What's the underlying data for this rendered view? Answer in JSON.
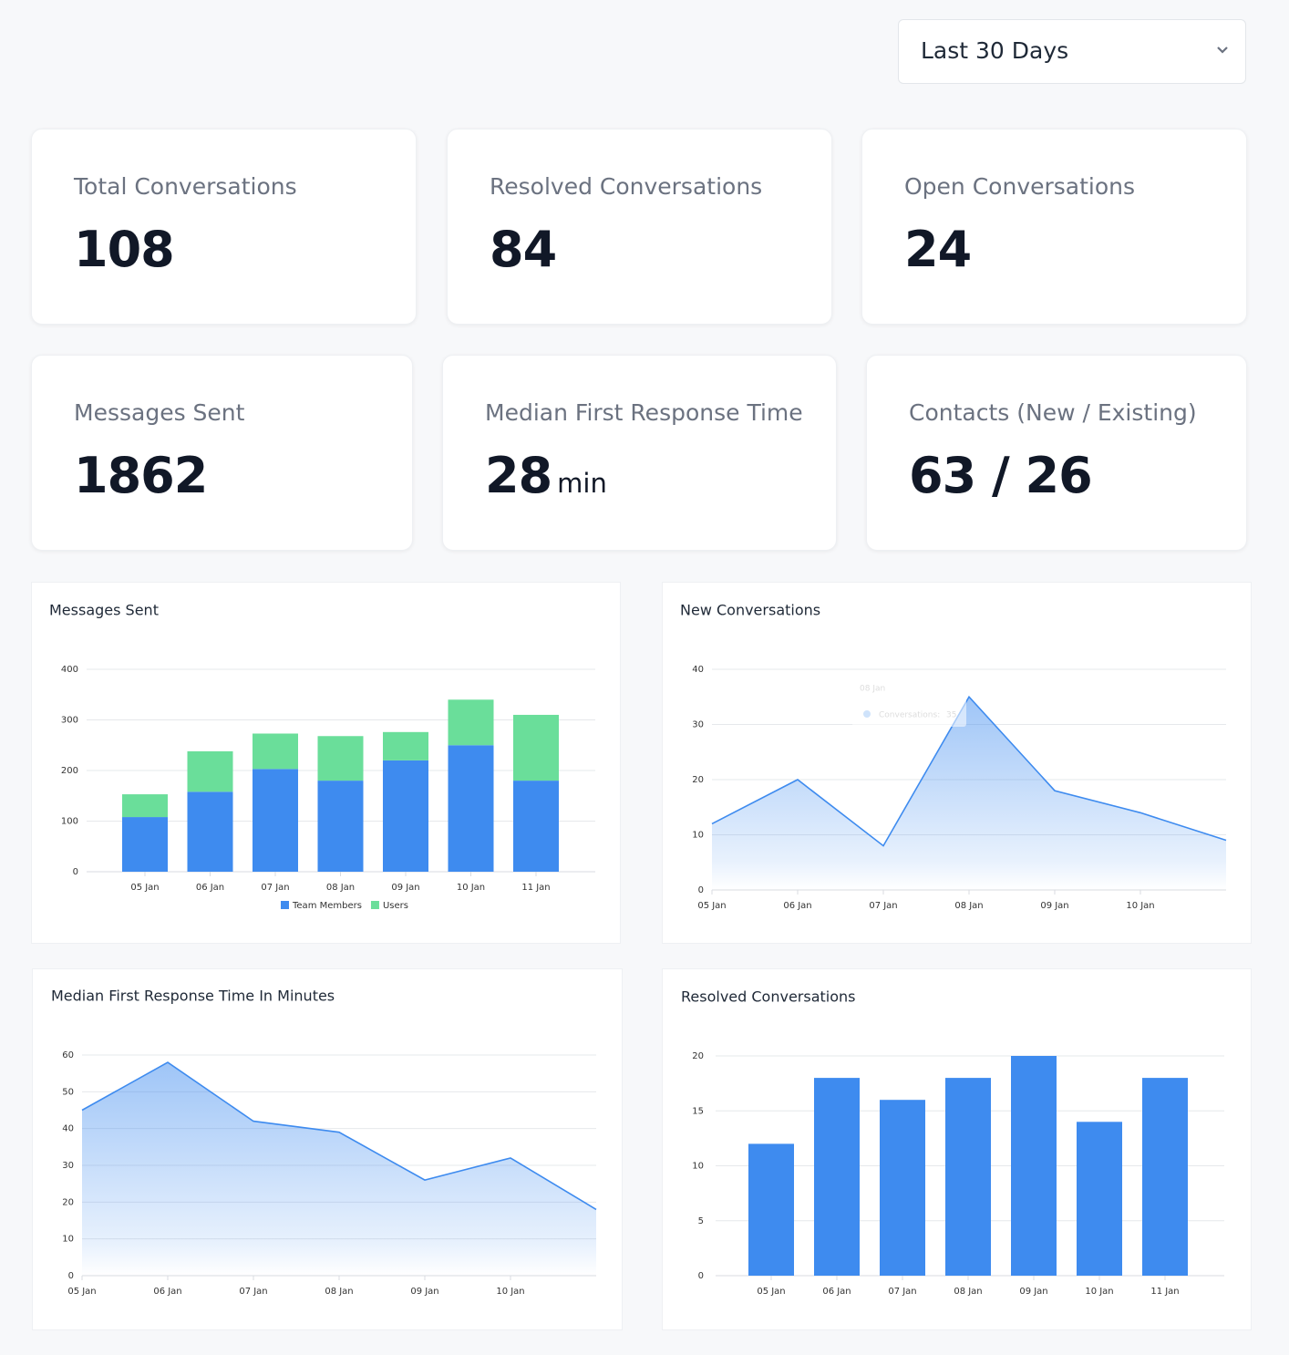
{
  "filter": {
    "label": "Last 30 Days"
  },
  "stats": [
    {
      "title": "Total Conversations",
      "value": 108
    },
    {
      "title": "Resolved Conversations",
      "value": 84
    },
    {
      "title": "Open Conversations",
      "value": 24
    },
    {
      "title": "Messages Sent",
      "value": 1862
    },
    {
      "title": "Median First Response Time",
      "value": 28,
      "unit": "min"
    },
    {
      "title": "Contacts (New / Existing)",
      "values": [
        63,
        26
      ],
      "separator": "/"
    }
  ],
  "chart_data": [
    {
      "type": "bar",
      "stacked": true,
      "title": "Messages Sent",
      "categories": [
        "05 Jan",
        "06 Jan",
        "07 Jan",
        "08 Jan",
        "09 Jan",
        "10 Jan",
        "11 Jan"
      ],
      "series": [
        {
          "name": "Team Members",
          "color": "#3e8bef",
          "values": [
            108,
            158,
            203,
            180,
            220,
            250,
            180
          ]
        },
        {
          "name": "Users",
          "color": "#6ade9a",
          "values": [
            45,
            80,
            70,
            88,
            56,
            90,
            130
          ]
        }
      ],
      "ylim": [
        0,
        400
      ],
      "yticks": [
        0,
        100,
        200,
        300,
        400
      ],
      "grid": true,
      "legend": "bottom"
    },
    {
      "type": "area",
      "title": "New Conversations",
      "categories": [
        "05 Jan",
        "06 Jan",
        "07 Jan",
        "08 Jan",
        "09 Jan",
        "10 Jan",
        null
      ],
      "values": [
        12,
        20,
        8,
        35,
        18,
        14,
        9
      ],
      "color": "#3e8bef",
      "ylim": [
        0,
        40
      ],
      "yticks": [
        0,
        10,
        20,
        30,
        40
      ],
      "grid": true,
      "tooltip": {
        "title": "08 Jan",
        "label": "Conversations:",
        "value": 35
      }
    },
    {
      "type": "area",
      "title": "Median First Response Time In Minutes",
      "categories": [
        "05 Jan",
        "06 Jan",
        "07 Jan",
        "08 Jan",
        "09 Jan",
        "10 Jan",
        null
      ],
      "values": [
        45,
        58,
        42,
        39,
        26,
        32,
        18
      ],
      "color": "#3e8bef",
      "ylim": [
        0,
        60
      ],
      "yticks": [
        0,
        10,
        20,
        30,
        40,
        50,
        60
      ],
      "grid": true
    },
    {
      "type": "bar",
      "title": "Resolved Conversations",
      "categories": [
        "05 Jan",
        "06 Jan",
        "07 Jan",
        "08 Jan",
        "09 Jan",
        "10 Jan",
        "11 Jan"
      ],
      "values": [
        12,
        18,
        16,
        18,
        20,
        14,
        18
      ],
      "color": "#3e8bef",
      "ylim": [
        0,
        20
      ],
      "yticks": [
        0,
        5,
        10,
        15,
        20
      ],
      "grid": true
    }
  ]
}
